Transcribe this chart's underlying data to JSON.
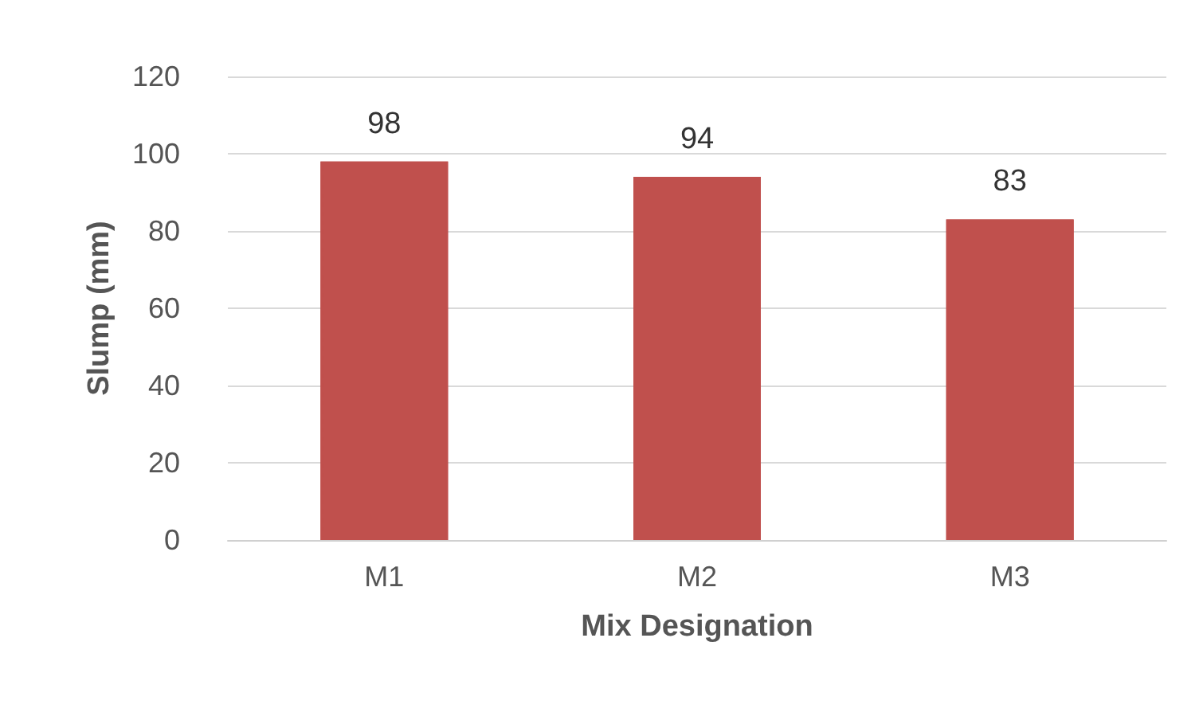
{
  "chart_data": {
    "type": "bar",
    "xlabel": "Mix Designation",
    "ylabel": "Slump (mm)",
    "categories": [
      "M1",
      "M2",
      "M3"
    ],
    "values": [
      98,
      94,
      83
    ],
    "color": "#c0504d",
    "ylim": [
      0,
      120
    ],
    "yticks": [
      0,
      20,
      40,
      60,
      80,
      100,
      120
    ],
    "grid": "y",
    "data_labels": true
  }
}
